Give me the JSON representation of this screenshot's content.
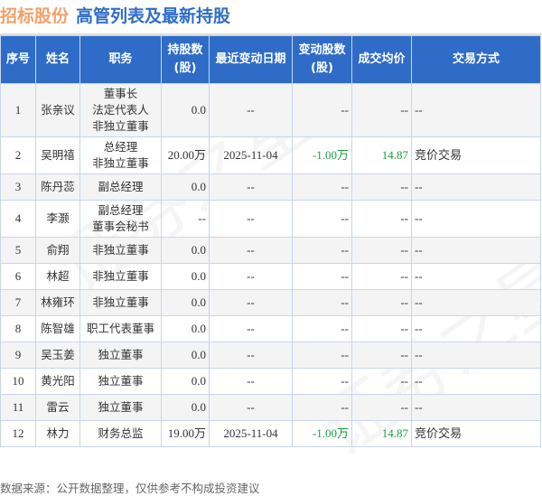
{
  "header": {
    "company": "招标股份",
    "subtitle": "高管列表及最新持股"
  },
  "columns": [
    "序号",
    "姓名",
    "职务",
    "持股数\n(股)",
    "最近变动日期",
    "变动股数\n(股)",
    "成交均价",
    "交易方式"
  ],
  "rows": [
    {
      "no": "1",
      "name": "张亲议",
      "roles": [
        "董事长",
        "法定代表人",
        "非独立董事"
      ],
      "shares": "0.0",
      "date": "--",
      "change": "--",
      "price": "--",
      "method": "--"
    },
    {
      "no": "2",
      "name": "吴明禧",
      "roles": [
        "总经理",
        "非独立董事"
      ],
      "shares": "20.00万",
      "date": "2025-11-04",
      "change": "-1.00万",
      "price": "14.87",
      "method": "竞价交易"
    },
    {
      "no": "3",
      "name": "陈丹蕊",
      "roles": [
        "副总经理"
      ],
      "shares": "0.0",
      "date": "--",
      "change": "--",
      "price": "--",
      "method": "--"
    },
    {
      "no": "4",
      "name": "李灏",
      "roles": [
        "副总经理",
        "董事会秘书"
      ],
      "shares": "--",
      "date": "--",
      "change": "--",
      "price": "--",
      "method": "--"
    },
    {
      "no": "5",
      "name": "俞翔",
      "roles": [
        "非独立董事"
      ],
      "shares": "0.0",
      "date": "--",
      "change": "--",
      "price": "--",
      "method": "--"
    },
    {
      "no": "6",
      "name": "林超",
      "roles": [
        "非独立董事"
      ],
      "shares": "0.0",
      "date": "--",
      "change": "--",
      "price": "--",
      "method": "--"
    },
    {
      "no": "7",
      "name": "林雍环",
      "roles": [
        "非独立董事"
      ],
      "shares": "0.0",
      "date": "--",
      "change": "--",
      "price": "--",
      "method": "--"
    },
    {
      "no": "8",
      "name": "陈智雄",
      "roles": [
        "职工代表董事"
      ],
      "shares": "0.0",
      "date": "--",
      "change": "--",
      "price": "--",
      "method": "--"
    },
    {
      "no": "9",
      "name": "吴玉姜",
      "roles": [
        "独立董事"
      ],
      "shares": "0.0",
      "date": "--",
      "change": "--",
      "price": "--",
      "method": "--"
    },
    {
      "no": "10",
      "name": "黄光阳",
      "roles": [
        "独立董事"
      ],
      "shares": "0.0",
      "date": "--",
      "change": "--",
      "price": "--",
      "method": "--"
    },
    {
      "no": "11",
      "name": "雷云",
      "roles": [
        "独立董事"
      ],
      "shares": "0.0",
      "date": "--",
      "change": "--",
      "price": "--",
      "method": "--"
    },
    {
      "no": "12",
      "name": "林力",
      "roles": [
        "财务总监"
      ],
      "shares": "19.00万",
      "date": "2025-11-04",
      "change": "-1.00万",
      "price": "14.87",
      "method": "竞价交易"
    }
  ],
  "footer": "数据来源：公开数据整理，仅供参考不构成投资建议",
  "watermark": "证券之星",
  "colors": {
    "header_bg": "#2f6cc7",
    "company": "#f4a06a",
    "subtitle": "#2f6ec6",
    "negative": "#1aa040"
  }
}
